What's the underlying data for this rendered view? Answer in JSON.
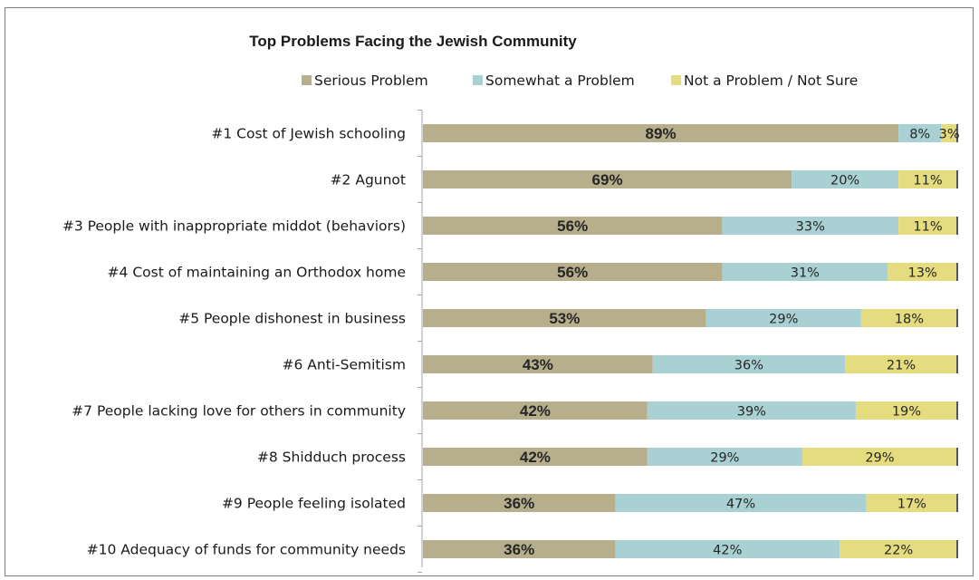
{
  "colors": {
    "serious": "#b7ae8c",
    "somewhat": "#a9d0d2",
    "not_problem": "#e5dc7f",
    "axis": "#a6a6a6",
    "frame": "#7f7f7f"
  },
  "chart_data": {
    "type": "bar",
    "orientation": "horizontal",
    "stacked": true,
    "title": "Top Problems Facing the Jewish Community",
    "legend_position": "top",
    "grid": false,
    "xlim": [
      0,
      100
    ],
    "categories": [
      "#1 Cost of Jewish schooling",
      "#2 Agunot",
      "#3 People with inappropriate middot (behaviors)",
      "#4 Cost of maintaining an Orthodox home",
      "#5 People dishonest in business",
      "#6 Anti-Semitism",
      "#7 People lacking love for others in community",
      "#8 Shidduch process",
      "#9 People feeling isolated",
      "#10 Adequacy of funds for community needs"
    ],
    "series": [
      {
        "name": "Serious Problem",
        "color_key": "serious",
        "values": [
          89,
          69,
          56,
          56,
          53,
          43,
          42,
          42,
          36,
          36
        ],
        "labels": [
          "89%",
          "69%",
          "56%",
          "56%",
          "53%",
          "43%",
          "42%",
          "42%",
          "36%",
          "36%"
        ]
      },
      {
        "name": "Somewhat a Problem",
        "color_key": "somewhat",
        "values": [
          8,
          20,
          33,
          31,
          29,
          36,
          39,
          29,
          47,
          42
        ],
        "labels": [
          "8%",
          "20%",
          "33%",
          "31%",
          "29%",
          "36%",
          "39%",
          "29%",
          "47%",
          "42%"
        ]
      },
      {
        "name": "Not a Problem / Not Sure",
        "color_key": "not_problem",
        "values": [
          3,
          11,
          11,
          13,
          18,
          21,
          19,
          29,
          17,
          22
        ],
        "labels": [
          "3%",
          "11%",
          "11%",
          "13%",
          "18%",
          "21%",
          "19%",
          "29%",
          "17%",
          "22%"
        ]
      }
    ]
  }
}
